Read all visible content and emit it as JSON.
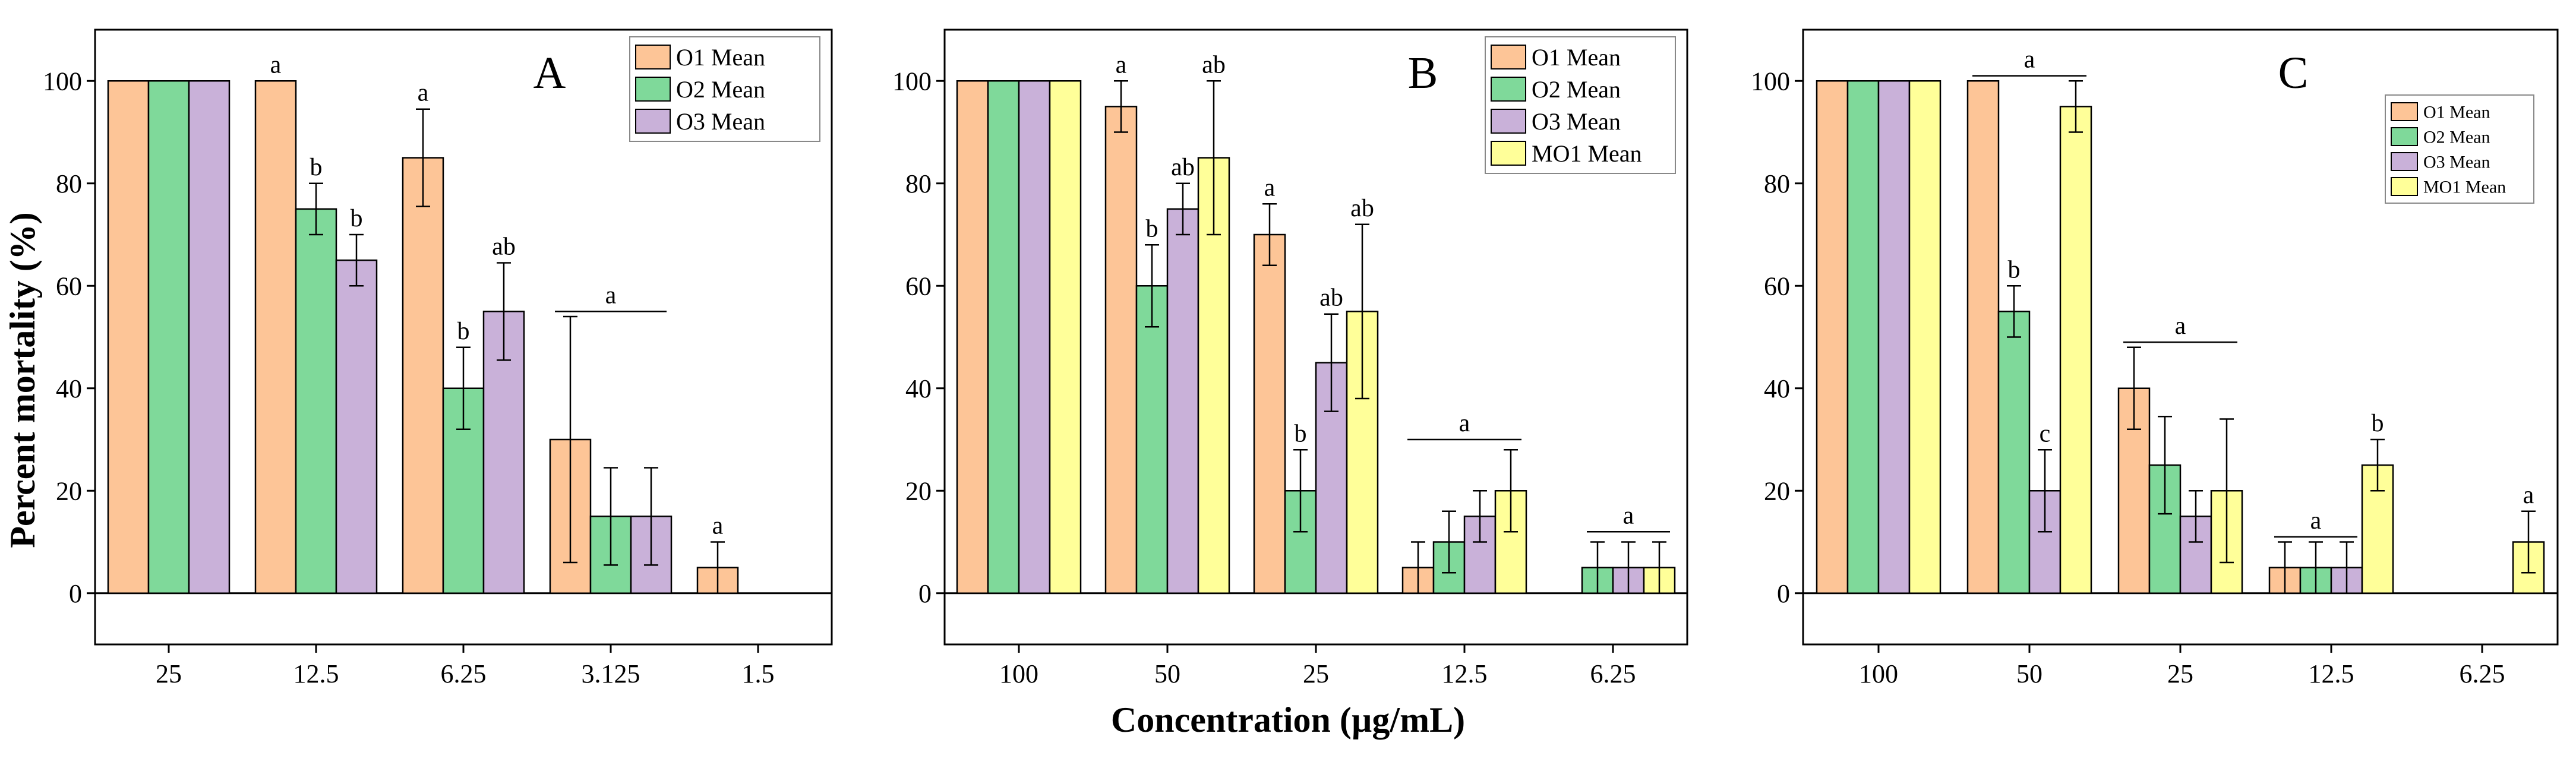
{
  "figure": {
    "ylabel": "Percent mortality (%)",
    "xlabel": "Concentration (µg/mL)"
  },
  "chart_data": [
    {
      "type": "bar",
      "panel": "A",
      "categories": [
        "25",
        "12.5",
        "6.25",
        "3.125",
        "1.5"
      ],
      "series": [
        {
          "name": "O1 Mean",
          "color": "#FDC597",
          "values": [
            100,
            100,
            85,
            30,
            5
          ],
          "errors": [
            0,
            0,
            9.5,
            24,
            5
          ]
        },
        {
          "name": "O2 Mean",
          "color": "#7FD99A",
          "values": [
            100,
            75,
            40,
            15,
            null
          ],
          "errors": [
            0,
            5,
            8,
            9.5,
            null
          ]
        },
        {
          "name": "O3 Mean",
          "color": "#C9B1D9",
          "values": [
            100,
            65,
            55,
            15,
            null
          ],
          "errors": [
            0,
            5,
            9.5,
            9.5,
            null
          ]
        }
      ],
      "letters": [
        {
          "cat": 1,
          "series": 0,
          "text": "a"
        },
        {
          "cat": 1,
          "series": 1,
          "text": "b"
        },
        {
          "cat": 1,
          "series": 2,
          "text": "b"
        },
        {
          "cat": 2,
          "series": 0,
          "text": "a"
        },
        {
          "cat": 2,
          "series": 1,
          "text": "b"
        },
        {
          "cat": 2,
          "series": 2,
          "text": "ab"
        },
        {
          "cat": 4,
          "series": 0,
          "text": "a"
        }
      ],
      "brackets": [
        {
          "cat": 3,
          "from_series": 0,
          "to_series": 2,
          "value": 55,
          "text": "a"
        }
      ],
      "ylim": [
        -10,
        110
      ],
      "yticks": [
        0,
        20,
        40,
        60,
        80,
        100
      ],
      "legend_position": "top-right",
      "legend_size": "large"
    },
    {
      "type": "bar",
      "panel": "B",
      "categories": [
        "100",
        "50",
        "25",
        "12.5",
        "6.25"
      ],
      "series": [
        {
          "name": "O1 Mean",
          "color": "#FDC597",
          "values": [
            100,
            95,
            70,
            5,
            null
          ],
          "errors": [
            0,
            5,
            6,
            5,
            null
          ]
        },
        {
          "name": "O2 Mean",
          "color": "#7FD99A",
          "values": [
            100,
            60,
            20,
            10,
            5
          ],
          "errors": [
            0,
            8,
            8,
            6,
            5
          ]
        },
        {
          "name": "O3 Mean",
          "color": "#C9B1D9",
          "values": [
            100,
            75,
            45,
            15,
            5
          ],
          "errors": [
            0,
            5,
            9.5,
            5,
            5
          ]
        },
        {
          "name": "MO1 Mean",
          "color": "#FFFF99",
          "values": [
            100,
            85,
            55,
            20,
            5
          ],
          "errors": [
            0,
            15,
            17,
            8,
            5
          ]
        }
      ],
      "letters": [
        {
          "cat": 1,
          "series": 0,
          "text": "a"
        },
        {
          "cat": 1,
          "series": 1,
          "text": "b"
        },
        {
          "cat": 1,
          "series": 2,
          "text": "ab"
        },
        {
          "cat": 1,
          "series": 3,
          "text": "ab"
        },
        {
          "cat": 2,
          "series": 0,
          "text": "a"
        },
        {
          "cat": 2,
          "series": 1,
          "text": "b"
        },
        {
          "cat": 2,
          "series": 2,
          "text": "ab"
        },
        {
          "cat": 2,
          "series": 3,
          "text": "ab"
        }
      ],
      "brackets": [
        {
          "cat": 3,
          "from_series": 0,
          "to_series": 3,
          "value": 30,
          "text": "a"
        },
        {
          "cat": 4,
          "from_series": 1,
          "to_series": 3,
          "value": 12,
          "text": "a"
        }
      ],
      "ylim": [
        -10,
        110
      ],
      "yticks": [
        0,
        20,
        40,
        60,
        80,
        100
      ],
      "legend_position": "top-right",
      "legend_size": "large"
    },
    {
      "type": "bar",
      "panel": "C",
      "categories": [
        "100",
        "50",
        "25",
        "12.5",
        "6.25"
      ],
      "series": [
        {
          "name": "O1 Mean",
          "color": "#FDC597",
          "values": [
            100,
            100,
            40,
            5,
            null
          ],
          "errors": [
            0,
            0,
            8,
            5,
            null
          ]
        },
        {
          "name": "O2 Mean",
          "color": "#7FD99A",
          "values": [
            100,
            55,
            25,
            5,
            null
          ],
          "errors": [
            0,
            5,
            9.5,
            5,
            null
          ]
        },
        {
          "name": "O3 Mean",
          "color": "#C9B1D9",
          "values": [
            100,
            20,
            15,
            5,
            null
          ],
          "errors": [
            0,
            8,
            5,
            5,
            null
          ]
        },
        {
          "name": "MO1 Mean",
          "color": "#FFFF99",
          "values": [
            100,
            95,
            20,
            25,
            10
          ],
          "errors": [
            0,
            5,
            14,
            5,
            6
          ]
        }
      ],
      "letters": [
        {
          "cat": 1,
          "series": 1,
          "text": "b"
        },
        {
          "cat": 1,
          "series": 2,
          "text": "c"
        },
        {
          "cat": 3,
          "series": 3,
          "text": "b"
        },
        {
          "cat": 4,
          "series": 3,
          "text": "a"
        }
      ],
      "brackets": [
        {
          "cat": 1,
          "from_series": 0,
          "to_series": 3,
          "value": 101,
          "text": "a"
        },
        {
          "cat": 2,
          "from_series": 0,
          "to_series": 3,
          "value": 49,
          "text": "a"
        },
        {
          "cat": 3,
          "from_series": 0,
          "to_series": 2,
          "value": 11,
          "text": "a"
        }
      ],
      "ylim": [
        -10,
        110
      ],
      "yticks": [
        0,
        20,
        40,
        60,
        80,
        100
      ],
      "legend_position": "top-right",
      "legend_size": "small"
    }
  ]
}
